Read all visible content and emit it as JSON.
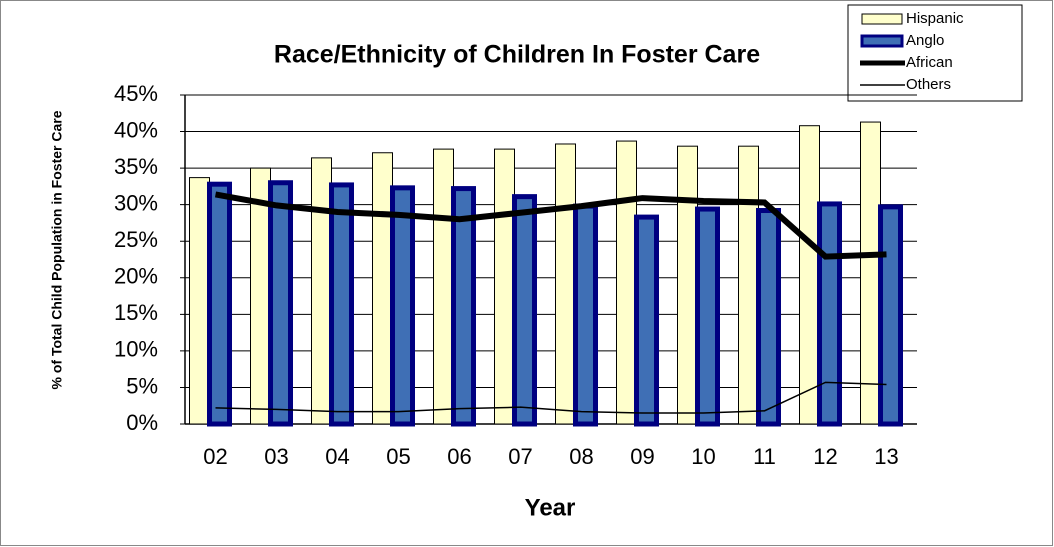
{
  "chart_data": {
    "type": "bar",
    "title": "Race/Ethnicity of Children In Foster Care",
    "x_label": "Year",
    "y_label": "% of Total Child Population in Foster Care",
    "categories": [
      "02",
      "03",
      "04",
      "05",
      "06",
      "07",
      "08",
      "09",
      "10",
      "11",
      "12",
      "13"
    ],
    "series": [
      {
        "name": "Hispanic",
        "type": "bar",
        "color": "#ffffcc",
        "values": [
          33.7,
          35.0,
          36.4,
          37.1,
          37.6,
          37.6,
          38.3,
          38.7,
          38.0,
          38.0,
          40.8,
          41.3
        ]
      },
      {
        "name": "Anglo",
        "type": "bar",
        "color": "#3f6fb5",
        "values": [
          32.8,
          33.0,
          32.7,
          32.3,
          32.2,
          31.1,
          29.8,
          28.3,
          29.4,
          29.2,
          30.1,
          29.7
        ]
      },
      {
        "name": "African",
        "type": "line",
        "color": "#000000",
        "values": [
          31.4,
          29.9,
          29.0,
          28.6,
          28.0,
          28.9,
          29.8,
          30.9,
          30.5,
          30.3,
          22.9,
          23.2
        ]
      },
      {
        "name": "Others",
        "type": "line",
        "color": "#000000",
        "values": [
          2.2,
          2.0,
          1.7,
          1.7,
          2.1,
          2.3,
          1.7,
          1.5,
          1.5,
          1.8,
          5.7,
          5.4
        ]
      }
    ],
    "ylim": [
      0,
      45
    ],
    "yticks": [
      {
        "value": 0,
        "label": "0%"
      },
      {
        "value": 5,
        "label": "5%"
      },
      {
        "value": 10,
        "label": "10%"
      },
      {
        "value": 15,
        "label": "15%"
      },
      {
        "value": 20,
        "label": "20%"
      },
      {
        "value": 25,
        "label": "25%"
      },
      {
        "value": 30,
        "label": "30%"
      },
      {
        "value": 35,
        "label": "35%"
      },
      {
        "value": 40,
        "label": "40%"
      },
      {
        "value": 45,
        "label": "45%"
      }
    ],
    "grid": true,
    "legend": "top-right"
  }
}
